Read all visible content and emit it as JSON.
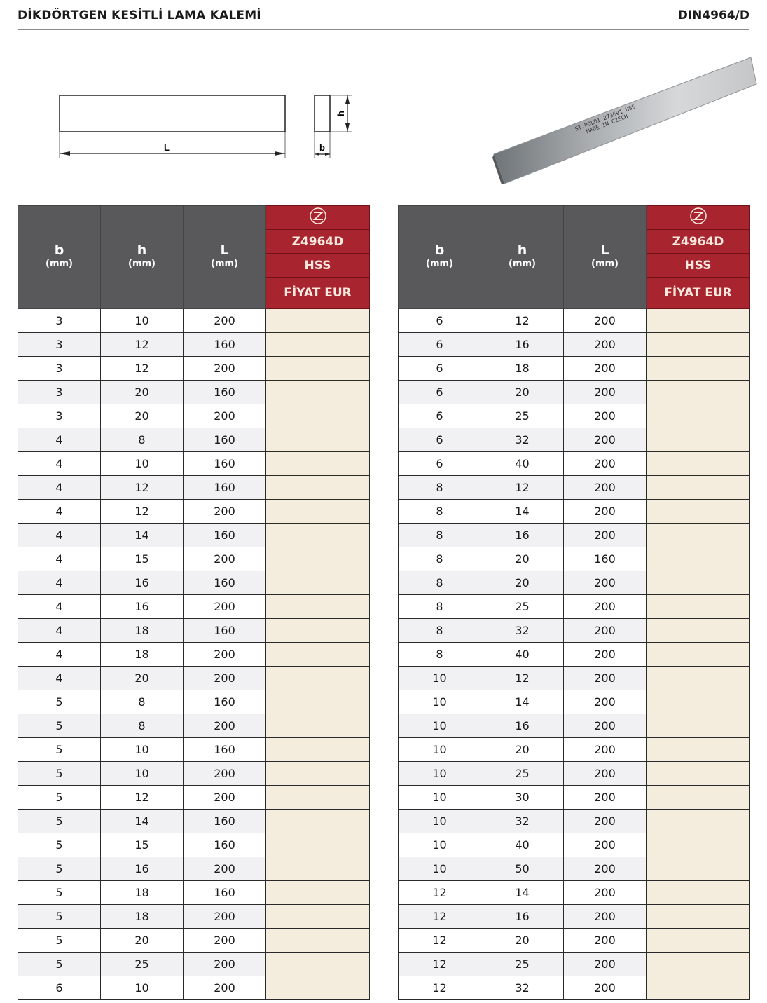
{
  "header": {
    "title": "DİKDÖRTGEN KESİTLİ LAMA KALEMİ",
    "code": "DIN4964/D"
  },
  "drawing": {
    "label_L": "L",
    "label_h": "h",
    "label_b": "b"
  },
  "photo": {
    "stamp_line1": "ST.POLDI 273691 HSS",
    "stamp_line2": "MADE IN CZECH"
  },
  "colors": {
    "header_gray": "#59595b",
    "brand_red": "#a8242e",
    "price_bg": "#f4ecdc",
    "stripe": "#f1f1f3"
  },
  "table_header": {
    "b": "b",
    "h": "h",
    "L": "L",
    "unit": "(mm)",
    "logo": "Z-logo-icon",
    "article": "Z4964D",
    "material": "HSS",
    "price": "FİYAT EUR"
  },
  "left_rows": [
    [
      "3",
      "10",
      "200"
    ],
    [
      "3",
      "12",
      "160"
    ],
    [
      "3",
      "12",
      "200"
    ],
    [
      "3",
      "20",
      "160"
    ],
    [
      "3",
      "20",
      "200"
    ],
    [
      "4",
      "8",
      "160"
    ],
    [
      "4",
      "10",
      "160"
    ],
    [
      "4",
      "12",
      "160"
    ],
    [
      "4",
      "12",
      "200"
    ],
    [
      "4",
      "14",
      "160"
    ],
    [
      "4",
      "15",
      "200"
    ],
    [
      "4",
      "16",
      "160"
    ],
    [
      "4",
      "16",
      "200"
    ],
    [
      "4",
      "18",
      "160"
    ],
    [
      "4",
      "18",
      "200"
    ],
    [
      "4",
      "20",
      "200"
    ],
    [
      "5",
      "8",
      "160"
    ],
    [
      "5",
      "8",
      "200"
    ],
    [
      "5",
      "10",
      "160"
    ],
    [
      "5",
      "10",
      "200"
    ],
    [
      "5",
      "12",
      "200"
    ],
    [
      "5",
      "14",
      "160"
    ],
    [
      "5",
      "15",
      "160"
    ],
    [
      "5",
      "16",
      "200"
    ],
    [
      "5",
      "18",
      "160"
    ],
    [
      "5",
      "18",
      "200"
    ],
    [
      "5",
      "20",
      "200"
    ],
    [
      "5",
      "25",
      "200"
    ],
    [
      "6",
      "10",
      "200"
    ]
  ],
  "right_rows": [
    [
      "6",
      "12",
      "200"
    ],
    [
      "6",
      "16",
      "200"
    ],
    [
      "6",
      "18",
      "200"
    ],
    [
      "6",
      "20",
      "200"
    ],
    [
      "6",
      "25",
      "200"
    ],
    [
      "6",
      "32",
      "200"
    ],
    [
      "6",
      "40",
      "200"
    ],
    [
      "8",
      "12",
      "200"
    ],
    [
      "8",
      "14",
      "200"
    ],
    [
      "8",
      "16",
      "200"
    ],
    [
      "8",
      "20",
      "160"
    ],
    [
      "8",
      "20",
      "200"
    ],
    [
      "8",
      "25",
      "200"
    ],
    [
      "8",
      "32",
      "200"
    ],
    [
      "8",
      "40",
      "200"
    ],
    [
      "10",
      "12",
      "200"
    ],
    [
      "10",
      "14",
      "200"
    ],
    [
      "10",
      "16",
      "200"
    ],
    [
      "10",
      "20",
      "200"
    ],
    [
      "10",
      "25",
      "200"
    ],
    [
      "10",
      "30",
      "200"
    ],
    [
      "10",
      "32",
      "200"
    ],
    [
      "10",
      "40",
      "200"
    ],
    [
      "10",
      "50",
      "200"
    ],
    [
      "12",
      "14",
      "200"
    ],
    [
      "12",
      "16",
      "200"
    ],
    [
      "12",
      "20",
      "200"
    ],
    [
      "12",
      "25",
      "200"
    ],
    [
      "12",
      "32",
      "200"
    ]
  ]
}
